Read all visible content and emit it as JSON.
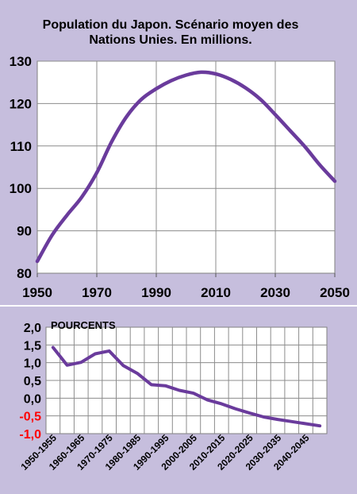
{
  "chart_data": [
    {
      "type": "line",
      "title_line1": "Population du Japon. Scénario moyen des",
      "title_line2": "Nations Unies. En millions.",
      "xlabel": "",
      "ylabel": "",
      "xlim": [
        1950,
        2050
      ],
      "ylim": [
        80,
        130
      ],
      "x_ticks": [
        1950,
        1970,
        1990,
        2010,
        2030,
        2050
      ],
      "y_ticks": [
        80,
        90,
        100,
        110,
        120,
        130
      ],
      "grid": true,
      "legend": "none",
      "line_color": "#6a3b9c",
      "series": [
        {
          "x": [
            1950,
            1955,
            1960,
            1965,
            1970,
            1975,
            1980,
            1985,
            1990,
            1995,
            2000,
            2005,
            2010,
            2015,
            2020,
            2025,
            2030,
            2035,
            2040,
            2045,
            2050
          ],
          "values": [
            82.8,
            89.0,
            93.7,
            98.0,
            103.7,
            111.0,
            116.9,
            121.0,
            123.5,
            125.4,
            126.7,
            127.4,
            127.0,
            125.7,
            123.7,
            121.0,
            117.4,
            113.6,
            109.8,
            105.5,
            101.7
          ]
        }
      ]
    },
    {
      "type": "line",
      "title": "POURCENTS",
      "xlabel": "",
      "ylabel": "",
      "ylim": [
        -1.0,
        2.0
      ],
      "y_ticks": [
        "2,0",
        "1,5",
        "1,0",
        "0,5",
        "0,0",
        "-0,5",
        "-1,0"
      ],
      "y_tick_values": [
        2.0,
        1.5,
        1.0,
        0.5,
        0.0,
        -0.5,
        -1.0
      ],
      "negative_tick_color": "#ff0000",
      "grid": true,
      "legend": "none",
      "line_color": "#6a3b9c",
      "categories": [
        "1950-1955",
        "1955-1960",
        "1960-1965",
        "1965-1970",
        "1970-1975",
        "1975-1980",
        "1980-1985",
        "1985-1990",
        "1990-1995",
        "1995-2000",
        "2000-2005",
        "2005-2010",
        "2010-2015",
        "2015-2020",
        "2020-2025",
        "2025-2030",
        "2030-2035",
        "2035-2040",
        "2040-2045",
        "2045-2050"
      ],
      "x_tick_labels": [
        "1950-1955",
        "1960-1965",
        "1970-1975",
        "1980-1985",
        "1990-1995",
        "2000-2005",
        "2010-2015",
        "2020-2025",
        "2030-2035",
        "2040-2045"
      ],
      "series": [
        {
          "values": [
            1.43,
            0.93,
            1.01,
            1.25,
            1.33,
            0.92,
            0.7,
            0.38,
            0.35,
            0.22,
            0.14,
            -0.05,
            -0.16,
            -0.3,
            -0.42,
            -0.53,
            -0.6,
            -0.66,
            -0.72,
            -0.78
          ]
        }
      ]
    }
  ]
}
